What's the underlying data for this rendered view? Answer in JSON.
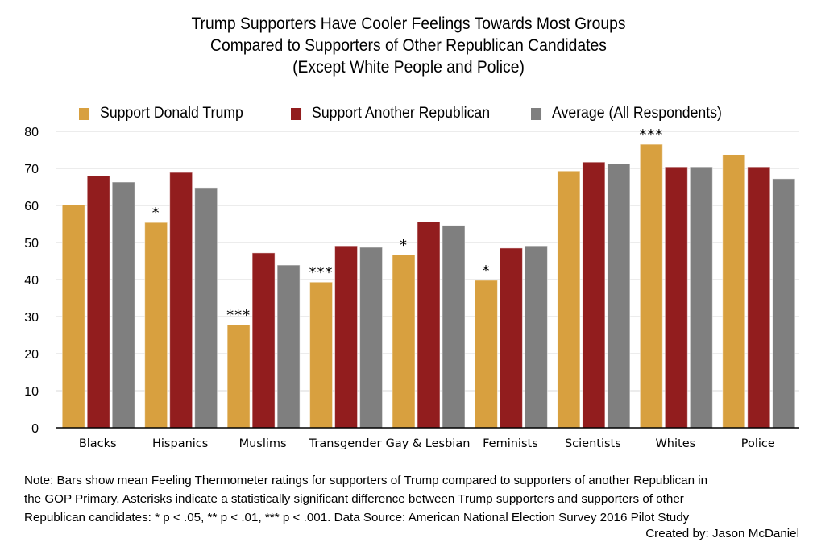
{
  "chart_data": {
    "type": "bar",
    "title": [
      "Trump Supporters Have Cooler Feelings Towards Most Groups",
      "Compared to Supporters of Other Republican Candidates",
      "(Except White People and Police)"
    ],
    "xlabel": "",
    "ylabel": "",
    "ylim": [
      0,
      80
    ],
    "yticks": [
      0,
      10,
      20,
      30,
      40,
      50,
      60,
      70,
      80
    ],
    "grid": true,
    "legend_position": "top",
    "categories": [
      "Blacks",
      "Hispanics",
      "Muslims",
      "Transgender",
      "Gay & Lesbian",
      "Feminists",
      "Scientists",
      "Whites",
      "Police"
    ],
    "series": [
      {
        "name": "Support Donald Trump",
        "color": "#D8A03F",
        "values": [
          60.2,
          55.4,
          27.8,
          39.3,
          46.7,
          39.8,
          69.3,
          76.5,
          73.7
        ]
      },
      {
        "name": "Support Another Republican",
        "color": "#921D1E",
        "values": [
          68.0,
          68.9,
          47.2,
          49.1,
          55.6,
          48.5,
          71.7,
          70.4,
          70.4
        ]
      },
      {
        "name": "Average (All Respondents)",
        "color": "#7F7F7F",
        "values": [
          66.3,
          64.8,
          43.9,
          48.7,
          54.6,
          49.1,
          71.3,
          70.4,
          67.2
        ]
      }
    ],
    "annotations": [
      "",
      "*",
      "***",
      "***",
      "*",
      "*",
      "",
      "***",
      ""
    ]
  },
  "note_lines": [
    "Note: Bars show mean Feeling Thermometer ratings for supporters of Trump compared to supporters of another Republican in",
    "the GOP Primary. Asterisks indicate a statistically significant difference between Trump supporters and supporters of other",
    "Republican candidates: * p < .05, ** p < .01, *** p < .001. Data Source: American National Election Survey 2016 Pilot Study"
  ],
  "credit": "Created by: Jason McDaniel"
}
